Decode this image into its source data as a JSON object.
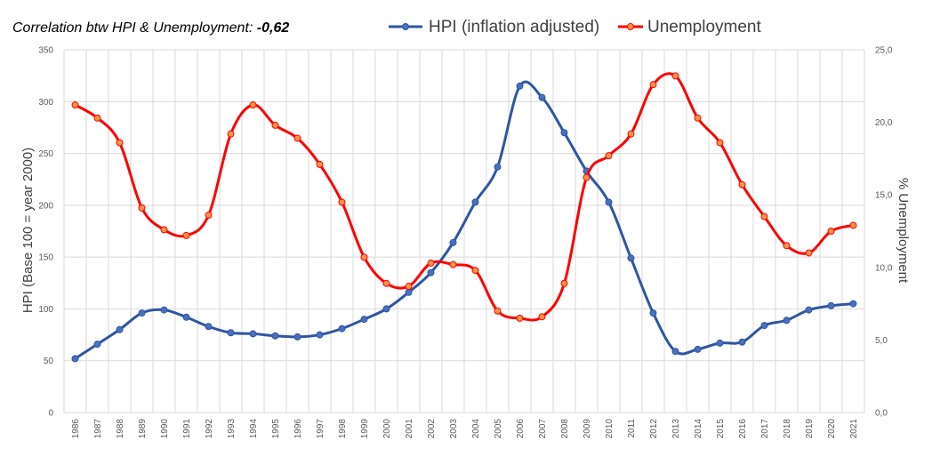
{
  "chart_data": {
    "type": "line",
    "title_prefix": "Correlation btw HPI & Unemployment: ",
    "title_value": "-0,62",
    "x": [
      "1986",
      "1987",
      "1988",
      "1989",
      "1990",
      "1991",
      "1992",
      "1993",
      "1994",
      "1995",
      "1996",
      "1997",
      "1998",
      "1999",
      "2000",
      "2001",
      "2002",
      "2003",
      "2004",
      "2005",
      "2006",
      "2007",
      "2008",
      "2009",
      "2010",
      "2011",
      "2012",
      "2013",
      "2014",
      "2015",
      "2016",
      "2017",
      "2018",
      "2019",
      "2020",
      "2021"
    ],
    "ylabel_left": "HPI (Base 100 = year 2000)",
    "ylabel_right": "% Unemployment",
    "ylim_left": [
      0,
      350
    ],
    "yticks_left": [
      "0",
      "50",
      "100",
      "150",
      "200",
      "250",
      "300",
      "350"
    ],
    "ylim_right": [
      0,
      25
    ],
    "yticks_right": [
      "0,0",
      "5,0",
      "10,0",
      "15,0",
      "20,0",
      "25,0"
    ],
    "grid": true,
    "legend_position": "top",
    "series": [
      {
        "name": "HPI (inflation adjusted)",
        "axis": "left",
        "color": "#2f55a4",
        "marker_fill": "#4a6fbd",
        "values": [
          52,
          66,
          80,
          96,
          99,
          92,
          83,
          77,
          76,
          74,
          73,
          75,
          81,
          90,
          100,
          116,
          135,
          164,
          203,
          237,
          315,
          304,
          270,
          233,
          203,
          149,
          96,
          59,
          61,
          67,
          68,
          84,
          89,
          99,
          103,
          105
        ]
      },
      {
        "name": "Unemployment",
        "axis": "right",
        "color": "#ff0000",
        "marker_fill": "#f79646",
        "values": [
          21.2,
          20.3,
          18.6,
          14.1,
          12.6,
          12.2,
          13.6,
          19.2,
          21.2,
          19.8,
          18.9,
          17.1,
          14.5,
          10.7,
          8.9,
          8.7,
          10.3,
          10.2,
          9.8,
          7.0,
          6.5,
          6.6,
          8.9,
          16.2,
          17.7,
          19.2,
          22.6,
          23.2,
          20.3,
          18.6,
          15.7,
          13.5,
          11.5,
          11.0,
          12.5,
          12.9
        ]
      }
    ]
  }
}
